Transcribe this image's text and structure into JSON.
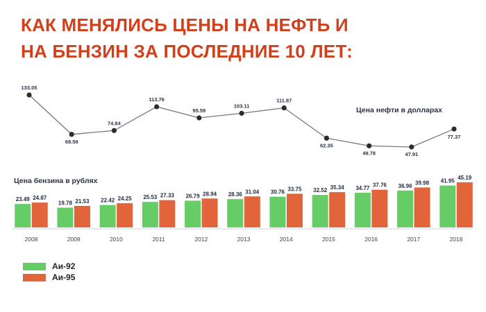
{
  "title": {
    "line1": "КАК МЕНЯЛИСЬ ЦЕНЫ НА НЕФТЬ И",
    "line2": "НА БЕНЗИН ЗА ПОСЛЕДНИЕ 10 ЛЕТ:"
  },
  "colors": {
    "title": "#d2401b",
    "ai92": "#66cc66",
    "ai95": "#e1643a",
    "oil_line": "#777777",
    "oil_point": "#2b2b2b"
  },
  "chart_data": {
    "type": "bar+line",
    "categories": [
      "2008",
      "2009",
      "2010",
      "2011",
      "2012",
      "2013",
      "2014",
      "2015",
      "2016",
      "2017",
      "2018"
    ],
    "oil": {
      "name": "Цена нефти в долларах",
      "values": [
        133.05,
        68.59,
        74.84,
        113.76,
        95.59,
        103.11,
        111.87,
        62.35,
        49.78,
        47.91,
        77.37
      ]
    },
    "gasoline_label": "Цена бензина в рублях",
    "series": [
      {
        "name": "Аи-92",
        "values": [
          23.49,
          19.78,
          22.42,
          25.53,
          26.79,
          28.36,
          30.76,
          32.52,
          34.77,
          36.96,
          41.95
        ]
      },
      {
        "name": "Аи-95",
        "values": [
          24.87,
          21.53,
          24.25,
          27.33,
          28.94,
          31.04,
          33.75,
          35.34,
          37.76,
          39.98,
          45.19
        ]
      }
    ]
  }
}
